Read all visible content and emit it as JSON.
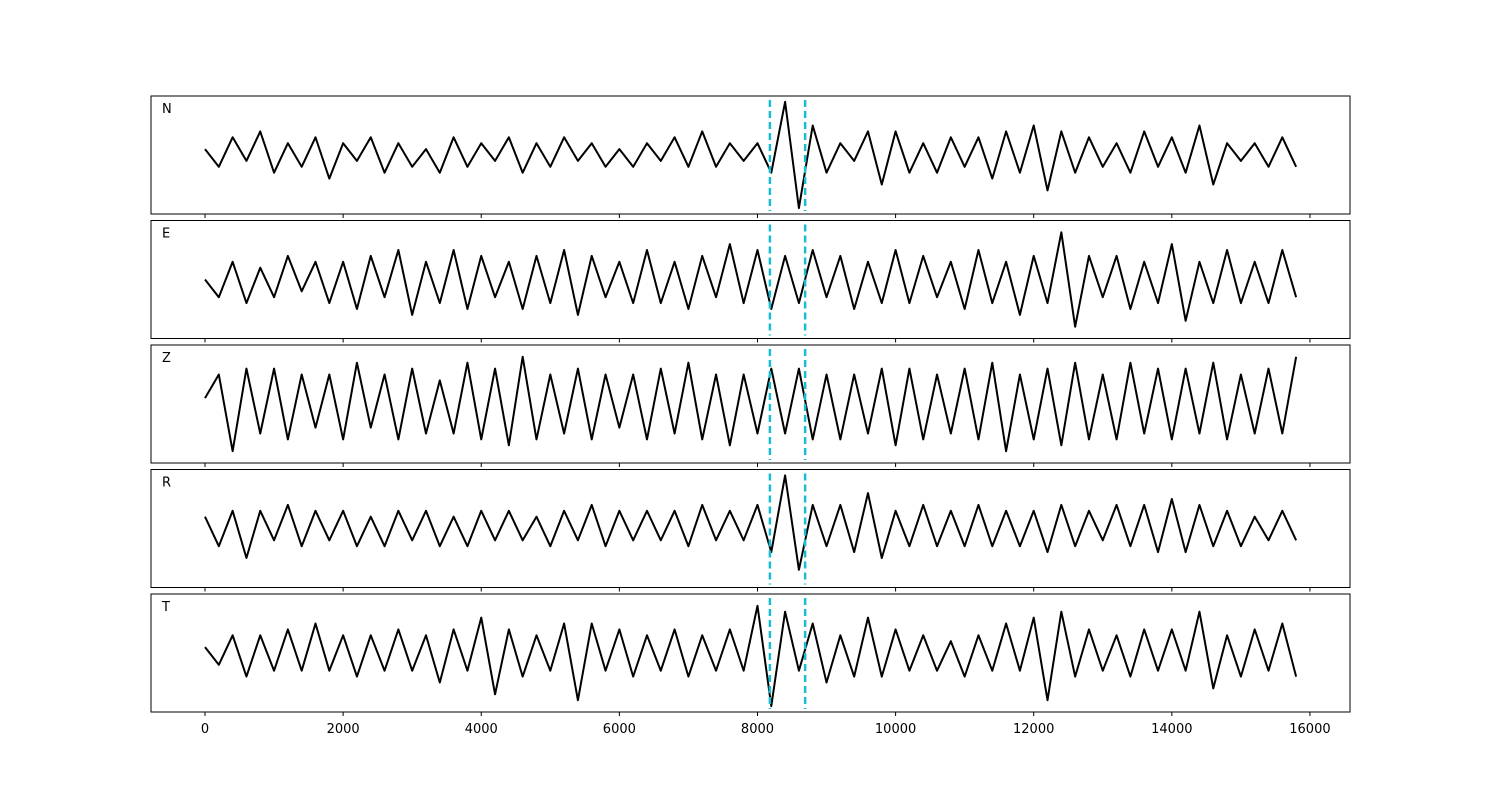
{
  "chart_data": {
    "type": "line",
    "layout": "stacked",
    "x": [
      0,
      200,
      400,
      600,
      800,
      1000,
      1200,
      1400,
      1600,
      1800,
      2000,
      2200,
      2400,
      2600,
      2800,
      3000,
      3200,
      3400,
      3600,
      3800,
      4000,
      4200,
      4400,
      4600,
      4800,
      5000,
      5200,
      5400,
      5600,
      5800,
      6000,
      6200,
      6400,
      6600,
      6800,
      7000,
      7200,
      7400,
      7600,
      7800,
      8000,
      8200,
      8400,
      8600,
      8800,
      9000,
      9200,
      9400,
      9600,
      9800,
      10000,
      10200,
      10400,
      10600,
      10800,
      11000,
      11200,
      11400,
      11600,
      11800,
      12000,
      12200,
      12400,
      12600,
      12800,
      13000,
      13200,
      13400,
      13600,
      13800,
      14000,
      14200,
      14400,
      14600,
      14800,
      15000,
      15200,
      15400,
      15600,
      15800
    ],
    "xlim": [
      -782,
      16580
    ],
    "xticks": [
      0,
      2000,
      4000,
      6000,
      8000,
      10000,
      12000,
      14000,
      16000
    ],
    "ylim": [
      -1,
      1
    ],
    "vlines": [
      8180,
      8690
    ],
    "vline_color": "#17becf",
    "series": [
      {
        "name": "N",
        "color": "#000000",
        "values": [
          0.1,
          -0.2,
          0.3,
          -0.1,
          0.4,
          -0.3,
          0.2,
          -0.2,
          0.3,
          -0.4,
          0.2,
          -0.1,
          0.3,
          -0.3,
          0.2,
          -0.2,
          0.1,
          -0.3,
          0.3,
          -0.2,
          0.2,
          -0.1,
          0.3,
          -0.3,
          0.2,
          -0.2,
          0.3,
          -0.1,
          0.2,
          -0.2,
          0.1,
          -0.2,
          0.2,
          -0.1,
          0.3,
          -0.2,
          0.4,
          -0.2,
          0.2,
          -0.1,
          0.2,
          -0.3,
          0.9,
          -0.9,
          0.5,
          -0.3,
          0.2,
          -0.1,
          0.4,
          -0.5,
          0.4,
          -0.3,
          0.2,
          -0.3,
          0.3,
          -0.2,
          0.3,
          -0.4,
          0.4,
          -0.3,
          0.5,
          -0.6,
          0.4,
          -0.3,
          0.3,
          -0.2,
          0.2,
          -0.3,
          0.4,
          -0.2,
          0.3,
          -0.3,
          0.5,
          -0.5,
          0.2,
          -0.1,
          0.2,
          -0.2,
          0.3,
          -0.2
        ]
      },
      {
        "name": "E",
        "color": "#000000",
        "values": [
          0.0,
          -0.3,
          0.3,
          -0.4,
          0.2,
          -0.3,
          0.4,
          -0.2,
          0.3,
          -0.4,
          0.3,
          -0.5,
          0.4,
          -0.3,
          0.5,
          -0.6,
          0.3,
          -0.4,
          0.5,
          -0.5,
          0.4,
          -0.3,
          0.3,
          -0.5,
          0.4,
          -0.4,
          0.5,
          -0.6,
          0.4,
          -0.3,
          0.3,
          -0.4,
          0.5,
          -0.4,
          0.3,
          -0.5,
          0.4,
          -0.3,
          0.6,
          -0.4,
          0.5,
          -0.5,
          0.4,
          -0.4,
          0.5,
          -0.3,
          0.4,
          -0.5,
          0.3,
          -0.4,
          0.5,
          -0.4,
          0.4,
          -0.3,
          0.3,
          -0.5,
          0.5,
          -0.4,
          0.3,
          -0.6,
          0.4,
          -0.4,
          0.8,
          -0.8,
          0.4,
          -0.3,
          0.4,
          -0.5,
          0.3,
          -0.4,
          0.6,
          -0.7,
          0.3,
          -0.4,
          0.5,
          -0.4,
          0.3,
          -0.4,
          0.5,
          -0.3
        ]
      },
      {
        "name": "Z",
        "color": "#000000",
        "values": [
          0.1,
          0.5,
          -0.8,
          0.6,
          -0.5,
          0.6,
          -0.6,
          0.5,
          -0.4,
          0.5,
          -0.6,
          0.7,
          -0.4,
          0.5,
          -0.6,
          0.6,
          -0.5,
          0.4,
          -0.5,
          0.7,
          -0.6,
          0.6,
          -0.7,
          0.8,
          -0.6,
          0.5,
          -0.5,
          0.6,
          -0.6,
          0.5,
          -0.4,
          0.5,
          -0.6,
          0.6,
          -0.5,
          0.7,
          -0.6,
          0.5,
          -0.7,
          0.5,
          -0.5,
          0.6,
          -0.5,
          0.6,
          -0.6,
          0.5,
          -0.6,
          0.5,
          -0.5,
          0.6,
          -0.7,
          0.6,
          -0.6,
          0.5,
          -0.5,
          0.6,
          -0.6,
          0.7,
          -0.8,
          0.5,
          -0.6,
          0.6,
          -0.7,
          0.7,
          -0.6,
          0.5,
          -0.6,
          0.7,
          -0.5,
          0.6,
          -0.6,
          0.6,
          -0.5,
          0.7,
          -0.6,
          0.5,
          -0.5,
          0.6,
          -0.5,
          0.8
        ]
      },
      {
        "name": "R",
        "color": "#000000",
        "values": [
          0.2,
          -0.3,
          0.3,
          -0.5,
          0.3,
          -0.2,
          0.4,
          -0.3,
          0.3,
          -0.2,
          0.3,
          -0.3,
          0.2,
          -0.3,
          0.3,
          -0.2,
          0.3,
          -0.3,
          0.2,
          -0.3,
          0.3,
          -0.2,
          0.3,
          -0.2,
          0.2,
          -0.3,
          0.3,
          -0.2,
          0.4,
          -0.3,
          0.3,
          -0.2,
          0.3,
          -0.2,
          0.3,
          -0.3,
          0.4,
          -0.2,
          0.3,
          -0.2,
          0.4,
          -0.4,
          0.9,
          -0.7,
          0.4,
          -0.3,
          0.4,
          -0.4,
          0.6,
          -0.5,
          0.3,
          -0.3,
          0.4,
          -0.3,
          0.3,
          -0.3,
          0.4,
          -0.3,
          0.3,
          -0.3,
          0.3,
          -0.4,
          0.4,
          -0.3,
          0.3,
          -0.2,
          0.4,
          -0.3,
          0.4,
          -0.4,
          0.5,
          -0.4,
          0.4,
          -0.3,
          0.3,
          -0.3,
          0.2,
          -0.2,
          0.3,
          -0.2
        ]
      },
      {
        "name": "T",
        "color": "#000000",
        "values": [
          0.1,
          -0.2,
          0.3,
          -0.4,
          0.3,
          -0.3,
          0.4,
          -0.3,
          0.5,
          -0.3,
          0.3,
          -0.4,
          0.3,
          -0.3,
          0.4,
          -0.3,
          0.3,
          -0.5,
          0.4,
          -0.3,
          0.6,
          -0.7,
          0.4,
          -0.4,
          0.3,
          -0.3,
          0.5,
          -0.8,
          0.5,
          -0.3,
          0.4,
          -0.4,
          0.3,
          -0.3,
          0.4,
          -0.4,
          0.3,
          -0.3,
          0.4,
          -0.3,
          0.8,
          -0.9,
          0.7,
          -0.3,
          0.5,
          -0.5,
          0.3,
          -0.4,
          0.6,
          -0.4,
          0.4,
          -0.3,
          0.3,
          -0.3,
          0.2,
          -0.4,
          0.3,
          -0.3,
          0.5,
          -0.3,
          0.6,
          -0.8,
          0.7,
          -0.4,
          0.4,
          -0.3,
          0.3,
          -0.4,
          0.4,
          -0.3,
          0.4,
          -0.3,
          0.7,
          -0.6,
          0.3,
          -0.4,
          0.4,
          -0.3,
          0.5,
          -0.4
        ]
      }
    ]
  }
}
